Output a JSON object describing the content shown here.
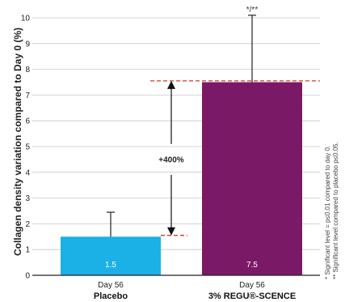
{
  "chart_data": {
    "type": "bar",
    "ylabel": "Collagen density variation compared to Day 0 (%)",
    "ylim": [
      0,
      10
    ],
    "yticks": [
      0,
      1,
      2,
      3,
      4,
      5,
      6,
      7,
      8,
      9,
      10
    ],
    "grid": true,
    "categories": [
      {
        "day": "Day 56",
        "name": "Placebo"
      },
      {
        "day": "Day 56",
        "name": "3% REGU®-SCENCE"
      }
    ],
    "values": [
      1.5,
      7.5
    ],
    "value_labels": [
      "1.5",
      "7.5"
    ],
    "error_upper": [
      2.45,
      10.1
    ],
    "colors": [
      "#1bb0e6",
      "#7a1a66"
    ],
    "annotation": {
      "text": "+400%",
      "from": 1.55,
      "to": 7.55,
      "line_color": "#d9342b"
    },
    "significance": {
      "text": "*/**",
      "category_index": 1
    },
    "footnotes": [
      "* Significant level = p≤0.01 compared to day 0.",
      "** Significant level compared to placebo p≤0.05."
    ]
  }
}
